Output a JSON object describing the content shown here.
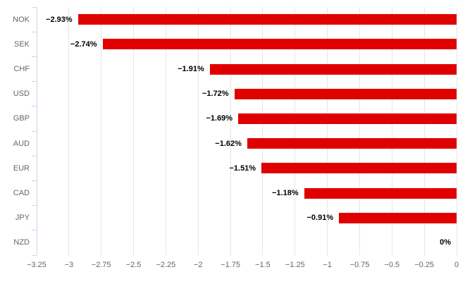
{
  "chart_data": {
    "type": "bar",
    "orientation": "horizontal",
    "title": "",
    "xlabel": "",
    "ylabel": "",
    "categories": [
      "NOK",
      "SEK",
      "CHF",
      "USD",
      "GBP",
      "AUD",
      "EUR",
      "CAD",
      "JPY",
      "NZD"
    ],
    "values": [
      -2.93,
      -2.74,
      -1.91,
      -1.72,
      -1.69,
      -1.62,
      -1.51,
      -1.18,
      -0.91,
      0
    ],
    "data_labels": [
      "−2.93%",
      "−2.74%",
      "−1.91%",
      "−1.72%",
      "−1.69%",
      "−1.62%",
      "−1.51%",
      "−1.18%",
      "−0.91%",
      "0%"
    ],
    "xlim": [
      -3.25,
      0
    ],
    "x_ticks": [
      -3.25,
      -3,
      -2.75,
      -2.5,
      -2.25,
      -2,
      -1.75,
      -1.5,
      -1.25,
      -1,
      -0.75,
      -0.5,
      -0.25,
      0
    ],
    "x_tick_labels": [
      "−3.25",
      "−3",
      "−2.75",
      "−2.5",
      "−2.25",
      "−2",
      "−1.75",
      "−1.5",
      "−1.25",
      "−1",
      "−0.75",
      "−0.5",
      "−0.25",
      "0"
    ],
    "grid": true,
    "legend": "none",
    "colors": {
      "bar": "#e00000",
      "grid": "#e6e6e6",
      "axis_line": "#ccd6eb",
      "tick": "#ccd6eb",
      "axis_label": "#666666",
      "data_label": "#000000",
      "background": "#ffffff"
    }
  }
}
